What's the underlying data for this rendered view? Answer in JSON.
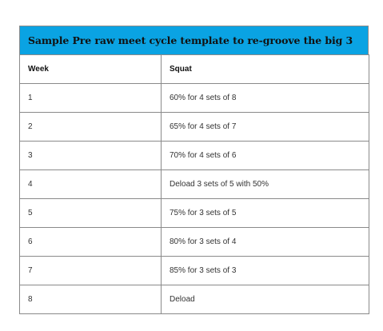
{
  "table": {
    "title": "Sample Pre raw meet cycle template to re-groove the big 3",
    "headers": [
      "Week",
      "Squat"
    ],
    "rows": [
      [
        "1",
        "60% for 4 sets of 8"
      ],
      [
        "2",
        "65% for 4 sets of 7"
      ],
      [
        "3",
        "70% for 4 sets of 6"
      ],
      [
        "4",
        "Deload 3 sets of 5 with 50%"
      ],
      [
        "5",
        "75% for 3 sets of 5"
      ],
      [
        "6",
        "80% for 3 sets of 4"
      ],
      [
        "7",
        "85% for 3 sets of 3"
      ],
      [
        "8",
        "Deload"
      ]
    ],
    "header_color": "#0aa3e3",
    "border_color": "#8a8a8a"
  }
}
